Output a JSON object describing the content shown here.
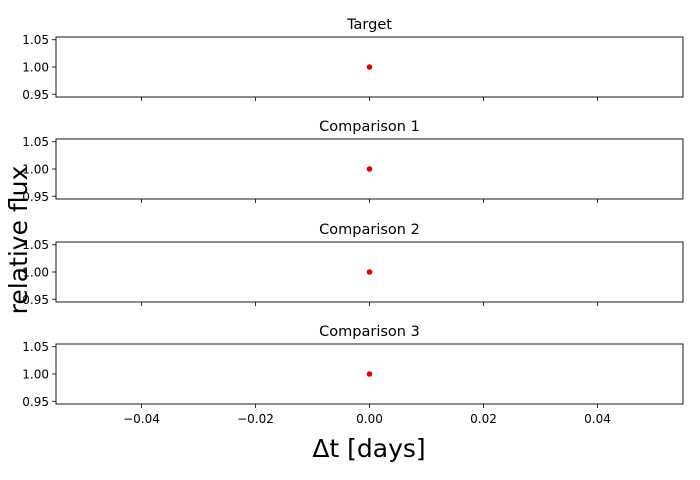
{
  "figure": {
    "xlabel": "Δt [days]",
    "ylabel": "relative flux"
  },
  "chart_data": [
    {
      "type": "scatter",
      "title": "Target",
      "x": [
        0.0
      ],
      "y": [
        1.0
      ],
      "marker_color": "#e00000",
      "xlim": [
        -0.055,
        0.055
      ],
      "ylim": [
        0.945,
        1.055
      ],
      "yticks": [
        "0.95",
        "1.00",
        "1.05"
      ],
      "xticks": [
        "−0.04",
        "−0.02",
        "0.00",
        "0.02",
        "0.04"
      ],
      "show_xtick_labels": false
    },
    {
      "type": "scatter",
      "title": "Comparison 1",
      "x": [
        0.0
      ],
      "y": [
        1.0
      ],
      "marker_color": "#e00000",
      "xlim": [
        -0.055,
        0.055
      ],
      "ylim": [
        0.945,
        1.055
      ],
      "yticks": [
        "0.95",
        "1.00",
        "1.05"
      ],
      "xticks": [
        "−0.04",
        "−0.02",
        "0.00",
        "0.02",
        "0.04"
      ],
      "show_xtick_labels": false
    },
    {
      "type": "scatter",
      "title": "Comparison 2",
      "x": [
        0.0
      ],
      "y": [
        1.0
      ],
      "marker_color": "#e00000",
      "xlim": [
        -0.055,
        0.055
      ],
      "ylim": [
        0.945,
        1.055
      ],
      "yticks": [
        "0.95",
        "1.00",
        "1.05"
      ],
      "xticks": [
        "−0.04",
        "−0.02",
        "0.00",
        "0.02",
        "0.04"
      ],
      "show_xtick_labels": false
    },
    {
      "type": "scatter",
      "title": "Comparison 3",
      "x": [
        0.0
      ],
      "y": [
        1.0
      ],
      "marker_color": "#e00000",
      "xlim": [
        -0.055,
        0.055
      ],
      "ylim": [
        0.945,
        1.055
      ],
      "yticks": [
        "0.95",
        "1.00",
        "1.05"
      ],
      "xticks": [
        "−0.04",
        "−0.02",
        "0.00",
        "0.02",
        "0.04"
      ],
      "show_xtick_labels": true
    }
  ]
}
